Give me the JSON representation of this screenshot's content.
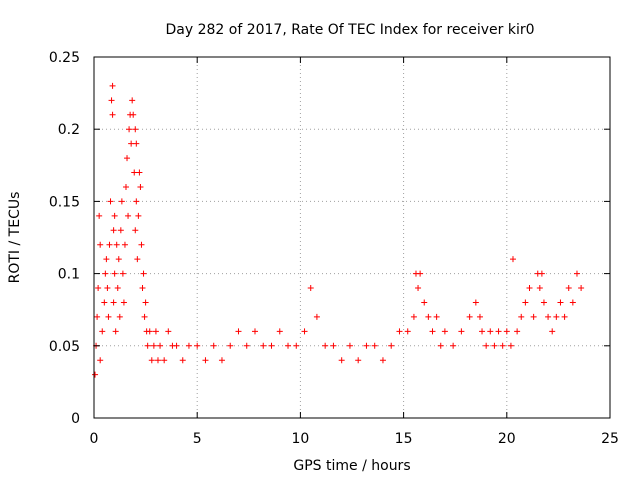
{
  "chart_data": {
    "type": "scatter",
    "title": "Day 282 of 2017, Rate Of TEC Index for receiver kir0",
    "xlabel": "GPS time / hours",
    "ylabel": "ROTI / TECUs",
    "xlim": [
      0,
      25
    ],
    "ylim": [
      0,
      0.25
    ],
    "xticks": [
      0,
      5,
      10,
      15,
      20,
      25
    ],
    "yticks": [
      0,
      0.05,
      0.1,
      0.15,
      0.2,
      0.25
    ],
    "xtick_labels": [
      "0",
      "5",
      "10",
      "15",
      "20",
      "25"
    ],
    "ytick_labels": [
      "0",
      "0.05",
      "0.1",
      "0.15",
      "0.2",
      "0.25"
    ],
    "grid": true,
    "marker": "+",
    "series": [
      {
        "name": "ROTI",
        "color": "#ff0000",
        "x": [
          0.05,
          0.1,
          0.15,
          0.2,
          0.25,
          0.3,
          0.3,
          0.4,
          0.5,
          0.55,
          0.6,
          0.65,
          0.7,
          0.75,
          0.8,
          0.85,
          0.9,
          0.9,
          0.95,
          0.95,
          1.0,
          1.0,
          1.05,
          1.1,
          1.15,
          1.2,
          1.25,
          1.3,
          1.35,
          1.4,
          1.45,
          1.5,
          1.55,
          1.6,
          1.65,
          1.7,
          1.75,
          1.8,
          1.85,
          1.9,
          1.95,
          2.0,
          2.0,
          2.05,
          2.05,
          2.1,
          2.15,
          2.2,
          2.25,
          2.3,
          2.35,
          2.4,
          2.45,
          2.5,
          2.55,
          2.6,
          2.7,
          2.8,
          2.9,
          3.0,
          3.1,
          3.2,
          3.4,
          3.6,
          3.8,
          4.0,
          4.3,
          4.6,
          5.0,
          5.4,
          5.8,
          6.2,
          6.6,
          7.0,
          7.4,
          7.8,
          8.2,
          8.6,
          9.0,
          9.4,
          9.8,
          10.2,
          10.5,
          10.8,
          11.2,
          11.6,
          12.0,
          12.4,
          12.8,
          13.2,
          13.6,
          14.0,
          14.4,
          14.8,
          15.2,
          15.5,
          15.6,
          15.7,
          15.8,
          16.0,
          16.2,
          16.4,
          16.6,
          16.8,
          17.0,
          17.4,
          17.8,
          18.2,
          18.5,
          18.7,
          18.8,
          19.0,
          19.2,
          19.4,
          19.6,
          19.8,
          20.0,
          20.2,
          20.3,
          20.5,
          20.7,
          20.9,
          21.1,
          21.3,
          21.5,
          21.6,
          21.7,
          21.8,
          22.0,
          22.2,
          22.4,
          22.6,
          22.8,
          23.0,
          23.2,
          23.4,
          23.6
        ],
        "y": [
          0.03,
          0.05,
          0.07,
          0.09,
          0.14,
          0.12,
          0.04,
          0.06,
          0.08,
          0.1,
          0.11,
          0.09,
          0.07,
          0.12,
          0.15,
          0.22,
          0.23,
          0.21,
          0.13,
          0.08,
          0.14,
          0.1,
          0.06,
          0.12,
          0.09,
          0.11,
          0.07,
          0.13,
          0.15,
          0.1,
          0.08,
          0.12,
          0.16,
          0.18,
          0.14,
          0.2,
          0.21,
          0.19,
          0.22,
          0.21,
          0.17,
          0.2,
          0.13,
          0.19,
          0.15,
          0.11,
          0.14,
          0.17,
          0.16,
          0.12,
          0.09,
          0.1,
          0.07,
          0.08,
          0.06,
          0.05,
          0.06,
          0.04,
          0.05,
          0.06,
          0.04,
          0.05,
          0.04,
          0.06,
          0.05,
          0.05,
          0.04,
          0.05,
          0.05,
          0.04,
          0.05,
          0.04,
          0.05,
          0.06,
          0.05,
          0.06,
          0.05,
          0.05,
          0.06,
          0.05,
          0.05,
          0.06,
          0.09,
          0.07,
          0.05,
          0.05,
          0.04,
          0.05,
          0.04,
          0.05,
          0.05,
          0.04,
          0.05,
          0.06,
          0.06,
          0.07,
          0.1,
          0.09,
          0.1,
          0.08,
          0.07,
          0.06,
          0.07,
          0.05,
          0.06,
          0.05,
          0.06,
          0.07,
          0.08,
          0.07,
          0.06,
          0.05,
          0.06,
          0.05,
          0.06,
          0.05,
          0.06,
          0.05,
          0.11,
          0.06,
          0.07,
          0.08,
          0.09,
          0.07,
          0.1,
          0.09,
          0.1,
          0.08,
          0.07,
          0.06,
          0.07,
          0.08,
          0.07,
          0.09,
          0.08,
          0.1,
          0.09
        ]
      }
    ]
  }
}
